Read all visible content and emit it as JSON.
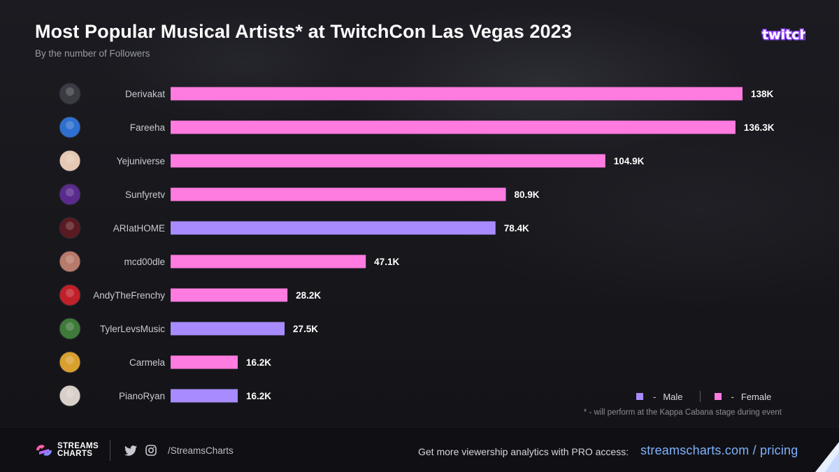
{
  "header": {
    "title": "Most Popular Musical Artists* at TwitchCon Las Vegas 2023",
    "subtitle": "By the number of Followers",
    "brand": "twitch"
  },
  "chart_data": {
    "type": "bar",
    "orientation": "horizontal",
    "title": "Most Popular Musical Artists* at TwitchCon Las Vegas 2023",
    "subtitle": "By the number of Followers",
    "categories": [
      "Derivakat",
      "Fareeha",
      "Yejuniverse",
      "Sunfyretv",
      "ARIatHOME",
      "mcd00dle",
      "AndyTheFrenchy",
      "TylerLevsMusic",
      "Carmela",
      "PianoRyan"
    ],
    "values": [
      138000,
      136300,
      104900,
      80900,
      78400,
      47100,
      28200,
      27500,
      16200,
      16200
    ],
    "value_labels": [
      "138K",
      "136.3K",
      "104.9K",
      "80.9K",
      "78.4K",
      "47.1K",
      "28.2K",
      "27.5K",
      "16.2K",
      "16.2K"
    ],
    "gender": [
      "Female",
      "Female",
      "Female",
      "Female",
      "Male",
      "Female",
      "Female",
      "Male",
      "Female",
      "Male"
    ],
    "colors": {
      "Male": "#a88cff",
      "Female": "#ff7be0"
    },
    "avatar_colors": [
      "#3b3b44",
      "#2f6fd0",
      "#e6c9b4",
      "#5a2b8c",
      "#5a1a22",
      "#b87a6a",
      "#c0202a",
      "#3f7a3a",
      "#d9a030",
      "#d8d0c8"
    ],
    "xlim": [
      0,
      138000
    ],
    "grid": false,
    "legend": [
      {
        "label": "Male",
        "color": "#a88cff"
      },
      {
        "label": "Female",
        "color": "#ff7be0"
      }
    ],
    "legend_position": "bottom-right"
  },
  "legend": {
    "male_label": "Male",
    "female_label": "Female",
    "dash": "-"
  },
  "footnote": "* - will perform at the Kappa Cabana stage during event",
  "footer": {
    "logo_line1": "STREAMS",
    "logo_line2": "CHARTS",
    "twitter_icon": "twitter-icon",
    "instagram_icon": "instagram-icon",
    "handle": "/StreamsCharts",
    "promo_text": "Get more viewership analytics with PRO access:",
    "promo_link": "streamscharts.com / pricing"
  }
}
